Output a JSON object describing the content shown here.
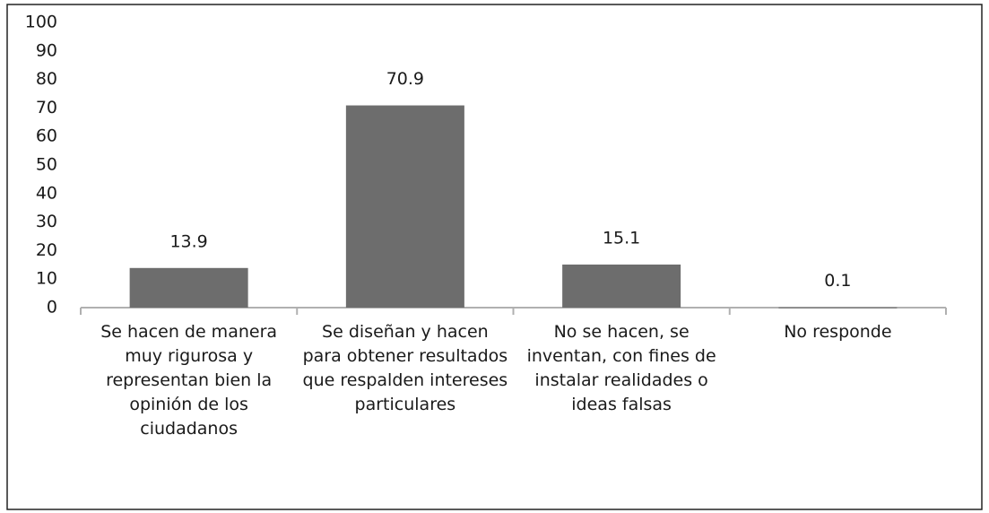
{
  "chart_data": {
    "type": "bar",
    "categories": [
      "Se hacen de manera muy rigurosa y representan bien la opinión de los ciudadanos",
      "Se diseñan y hacen para obtener resultados que respalden intereses particulares",
      "No se hacen, se inventan, con fines de instalar realidades o ideas falsas",
      "No responde"
    ],
    "values": [
      13.9,
      70.9,
      15.1,
      0.1
    ],
    "color": "#6d6d6d",
    "ylim": [
      0,
      100
    ],
    "yticks": [
      0,
      10,
      20,
      30,
      40,
      50,
      60,
      70,
      80,
      90,
      100
    ]
  }
}
